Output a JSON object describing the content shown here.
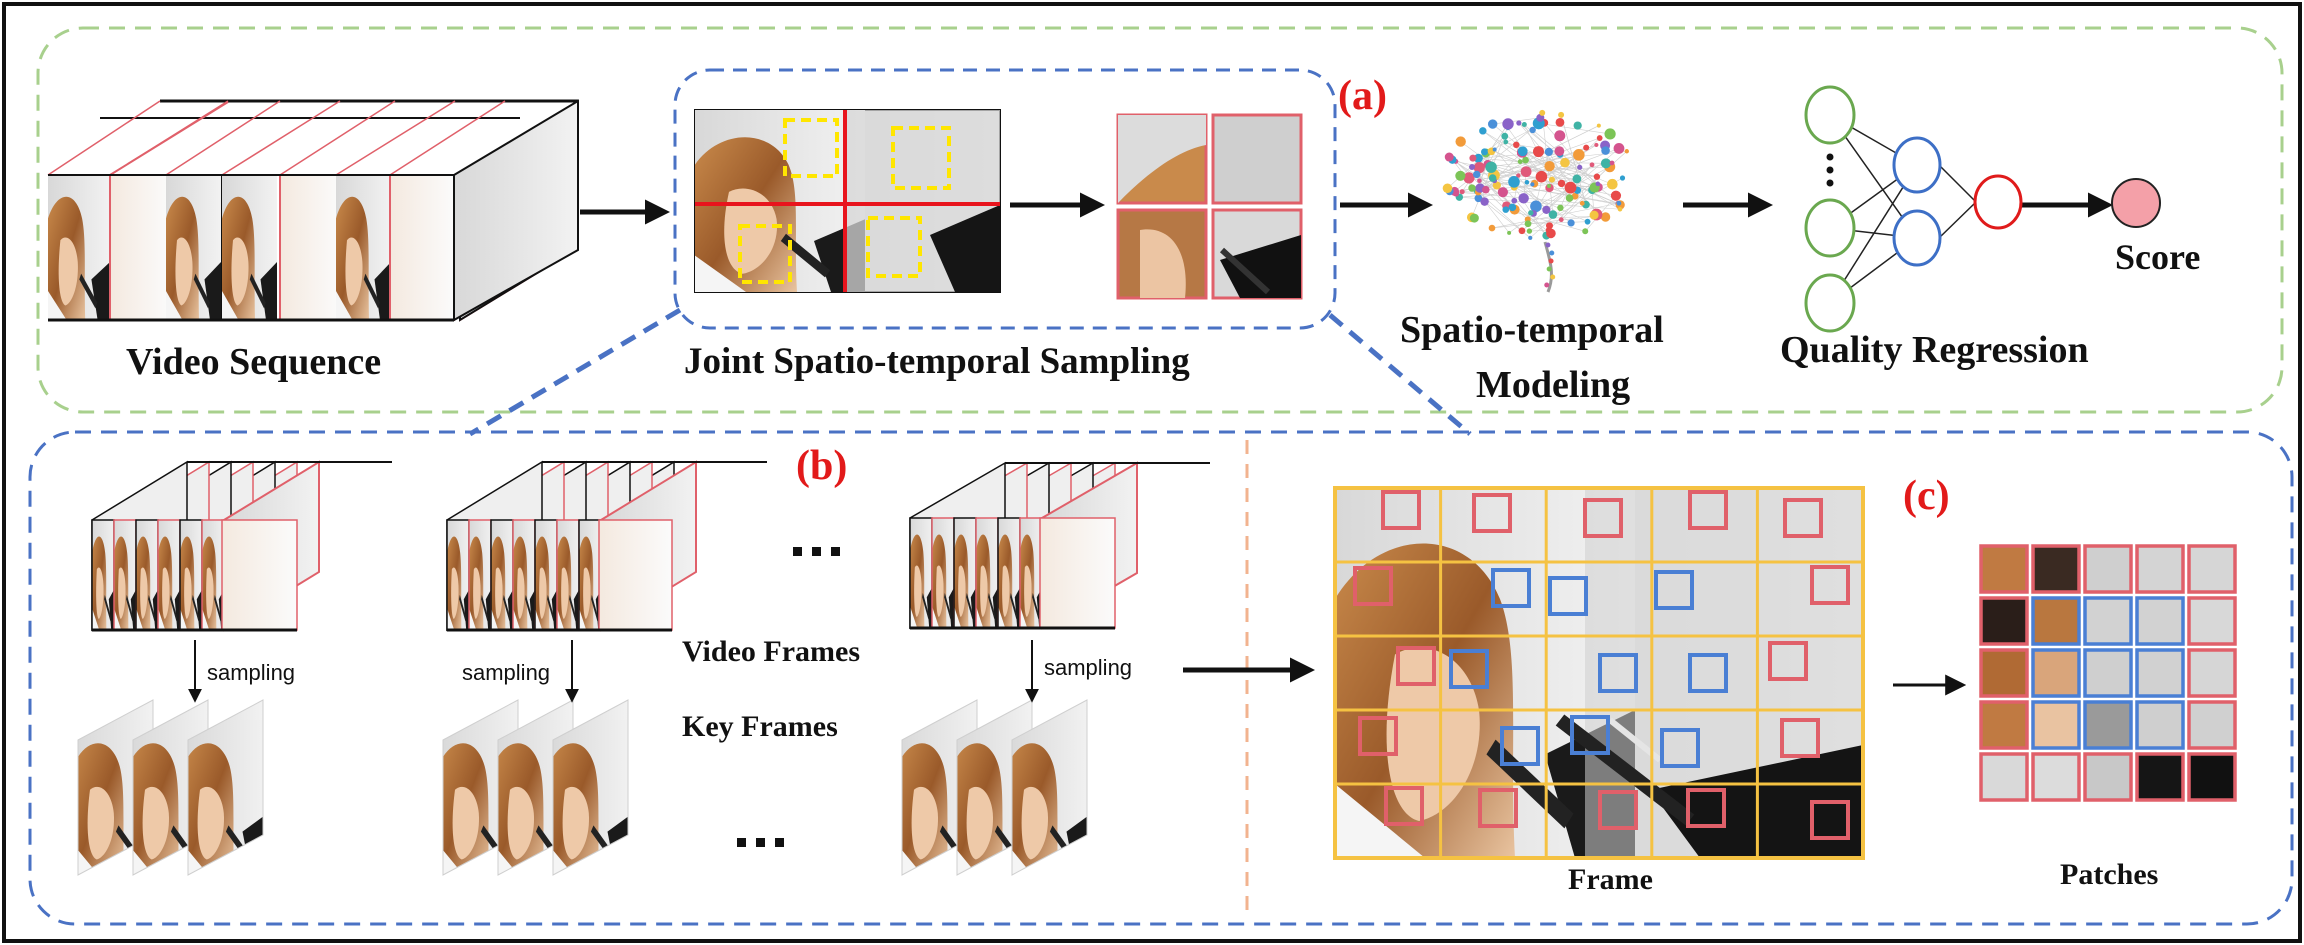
{
  "labels": {
    "panel_a": "(a)",
    "panel_b": "(b)",
    "panel_c": "(c)",
    "video_sequence": "Video Sequence",
    "joint_sampling": "Joint Spatio-temporal Sampling",
    "st_modeling_1": "Spatio-temporal",
    "st_modeling_2": "Modeling",
    "quality_regression": "Quality Regression",
    "score": "Score",
    "video_frames": "Video Frames",
    "key_frames": "Key Frames",
    "sampling": "sampling",
    "frame": "Frame",
    "patches": "Patches"
  },
  "colors": {
    "outer_border": "#111111",
    "top_dashed": "#a8d08d",
    "blue_dashed": "#4a72c4",
    "divider": "#f2b38f",
    "red_box": "#e0606a",
    "blue_box": "#4a7fd4",
    "yellow_grid": "#f5c242",
    "yellow_dash": "#ffe600",
    "split_line": "#e8141d",
    "green_node": "#6aa84f",
    "blue_node": "#3d6fc6",
    "red_node": "#e01b1b",
    "score_fill": "#f4a0a8"
  }
}
